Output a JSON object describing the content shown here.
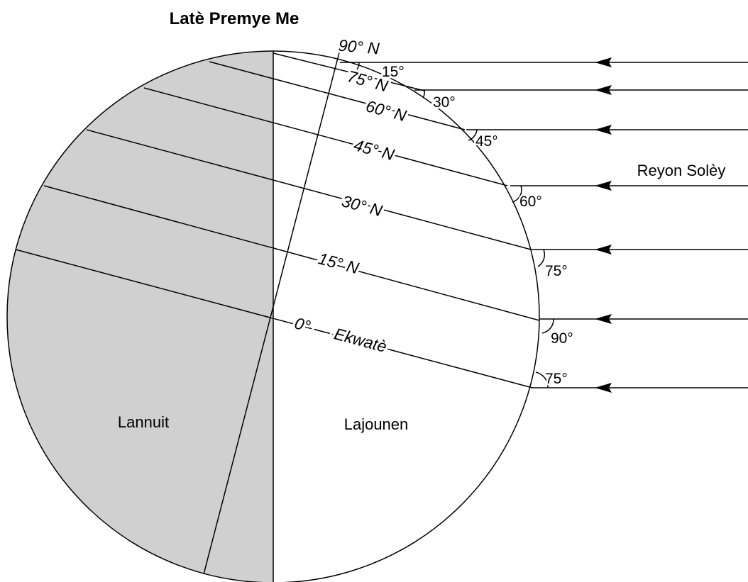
{
  "title": "Latè Premye Me",
  "sun_rays_label": "Reyon Solèy",
  "night_label": "Lannuit",
  "day_label": "Lajounen",
  "latitudes": [
    "90° N",
    "75° N",
    "60° N",
    "45° N",
    "30° N",
    "15° N",
    "0° — Ekwatè"
  ],
  "angles": [
    "15°",
    "30°",
    "45°",
    "60°",
    "75°",
    "90°",
    "75°"
  ]
}
